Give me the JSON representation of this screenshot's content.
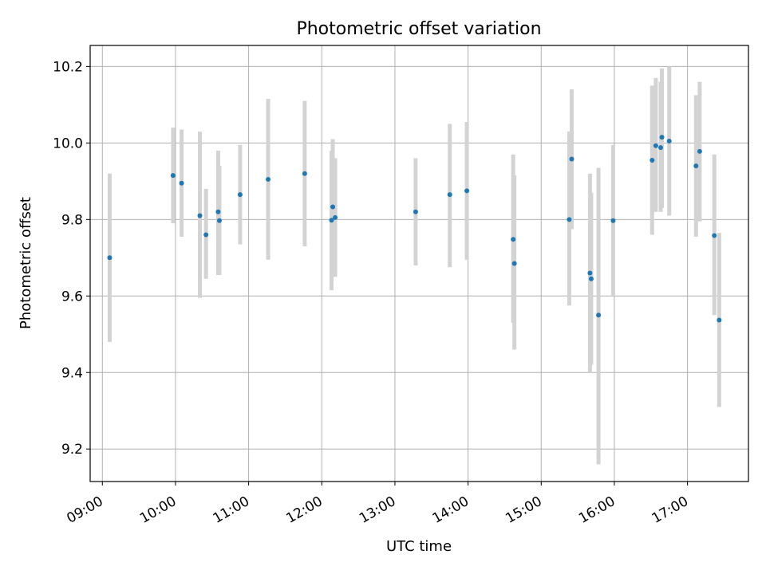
{
  "chart_data": {
    "type": "scatter",
    "title": "Photometric offset variation",
    "xlabel": "UTC time",
    "ylabel": "Photometric offset",
    "xlim": [
      "08:50",
      "17:50"
    ],
    "ylim": [
      9.115,
      10.255
    ],
    "grid": true,
    "x_ticks": [
      "09:00",
      "10:00",
      "11:00",
      "12:00",
      "13:00",
      "14:00",
      "15:00",
      "16:00",
      "17:00"
    ],
    "y_ticks": [
      "9.2",
      "9.4",
      "9.6",
      "9.8",
      "10.0",
      "10.2"
    ],
    "point_color": "#1f77b4",
    "errorbar_color": "#d3d3d3",
    "points": [
      {
        "t": "09:06",
        "y": 9.7,
        "ylo": 9.48,
        "yhi": 9.92
      },
      {
        "t": "09:58",
        "y": 9.915,
        "ylo": 9.79,
        "yhi": 10.04
      },
      {
        "t": "10:05",
        "y": 9.895,
        "ylo": 9.755,
        "yhi": 10.035
      },
      {
        "t": "10:20",
        "y": 9.81,
        "ylo": 9.595,
        "yhi": 10.03
      },
      {
        "t": "10:25",
        "y": 9.76,
        "ylo": 9.645,
        "yhi": 9.88
      },
      {
        "t": "10:35",
        "y": 9.82,
        "ylo": 9.655,
        "yhi": 9.98
      },
      {
        "t": "10:36",
        "y": 9.797,
        "ylo": 9.655,
        "yhi": 9.94
      },
      {
        "t": "10:53",
        "y": 9.865,
        "ylo": 9.735,
        "yhi": 9.995
      },
      {
        "t": "11:16",
        "y": 9.905,
        "ylo": 9.695,
        "yhi": 10.115
      },
      {
        "t": "11:46",
        "y": 9.92,
        "ylo": 9.73,
        "yhi": 10.11
      },
      {
        "t": "12:08",
        "y": 9.798,
        "ylo": 9.615,
        "yhi": 9.98
      },
      {
        "t": "12:09",
        "y": 9.833,
        "ylo": 9.655,
        "yhi": 10.01
      },
      {
        "t": "12:11",
        "y": 9.805,
        "ylo": 9.65,
        "yhi": 9.96
      },
      {
        "t": "13:17",
        "y": 9.82,
        "ylo": 9.68,
        "yhi": 9.96
      },
      {
        "t": "13:45",
        "y": 9.865,
        "ylo": 9.675,
        "yhi": 10.05
      },
      {
        "t": "13:59",
        "y": 9.875,
        "ylo": 9.695,
        "yhi": 10.055
      },
      {
        "t": "14:37",
        "y": 9.748,
        "ylo": 9.53,
        "yhi": 9.97
      },
      {
        "t": "14:38",
        "y": 9.685,
        "ylo": 9.46,
        "yhi": 9.915
      },
      {
        "t": "15:23",
        "y": 9.8,
        "ylo": 9.575,
        "yhi": 10.03
      },
      {
        "t": "15:25",
        "y": 9.958,
        "ylo": 9.775,
        "yhi": 10.14
      },
      {
        "t": "15:40",
        "y": 9.66,
        "ylo": 9.4,
        "yhi": 9.92
      },
      {
        "t": "15:41",
        "y": 9.645,
        "ylo": 9.42,
        "yhi": 9.87
      },
      {
        "t": "15:47",
        "y": 9.55,
        "ylo": 9.16,
        "yhi": 9.935
      },
      {
        "t": "15:59",
        "y": 9.797,
        "ylo": 9.6,
        "yhi": 9.995
      },
      {
        "t": "16:31",
        "y": 9.955,
        "ylo": 9.76,
        "yhi": 10.15
      },
      {
        "t": "16:34",
        "y": 9.993,
        "ylo": 9.82,
        "yhi": 10.17
      },
      {
        "t": "16:38",
        "y": 9.988,
        "ylo": 9.82,
        "yhi": 10.16
      },
      {
        "t": "16:39",
        "y": 10.015,
        "ylo": 9.83,
        "yhi": 10.195
      },
      {
        "t": "16:45",
        "y": 10.005,
        "ylo": 9.81,
        "yhi": 10.2
      },
      {
        "t": "17:07",
        "y": 9.94,
        "ylo": 9.755,
        "yhi": 10.125
      },
      {
        "t": "17:10",
        "y": 9.978,
        "ylo": 9.795,
        "yhi": 10.16
      },
      {
        "t": "17:22",
        "y": 9.758,
        "ylo": 9.55,
        "yhi": 9.97
      },
      {
        "t": "17:26",
        "y": 9.537,
        "ylo": 9.31,
        "yhi": 9.765
      }
    ]
  }
}
